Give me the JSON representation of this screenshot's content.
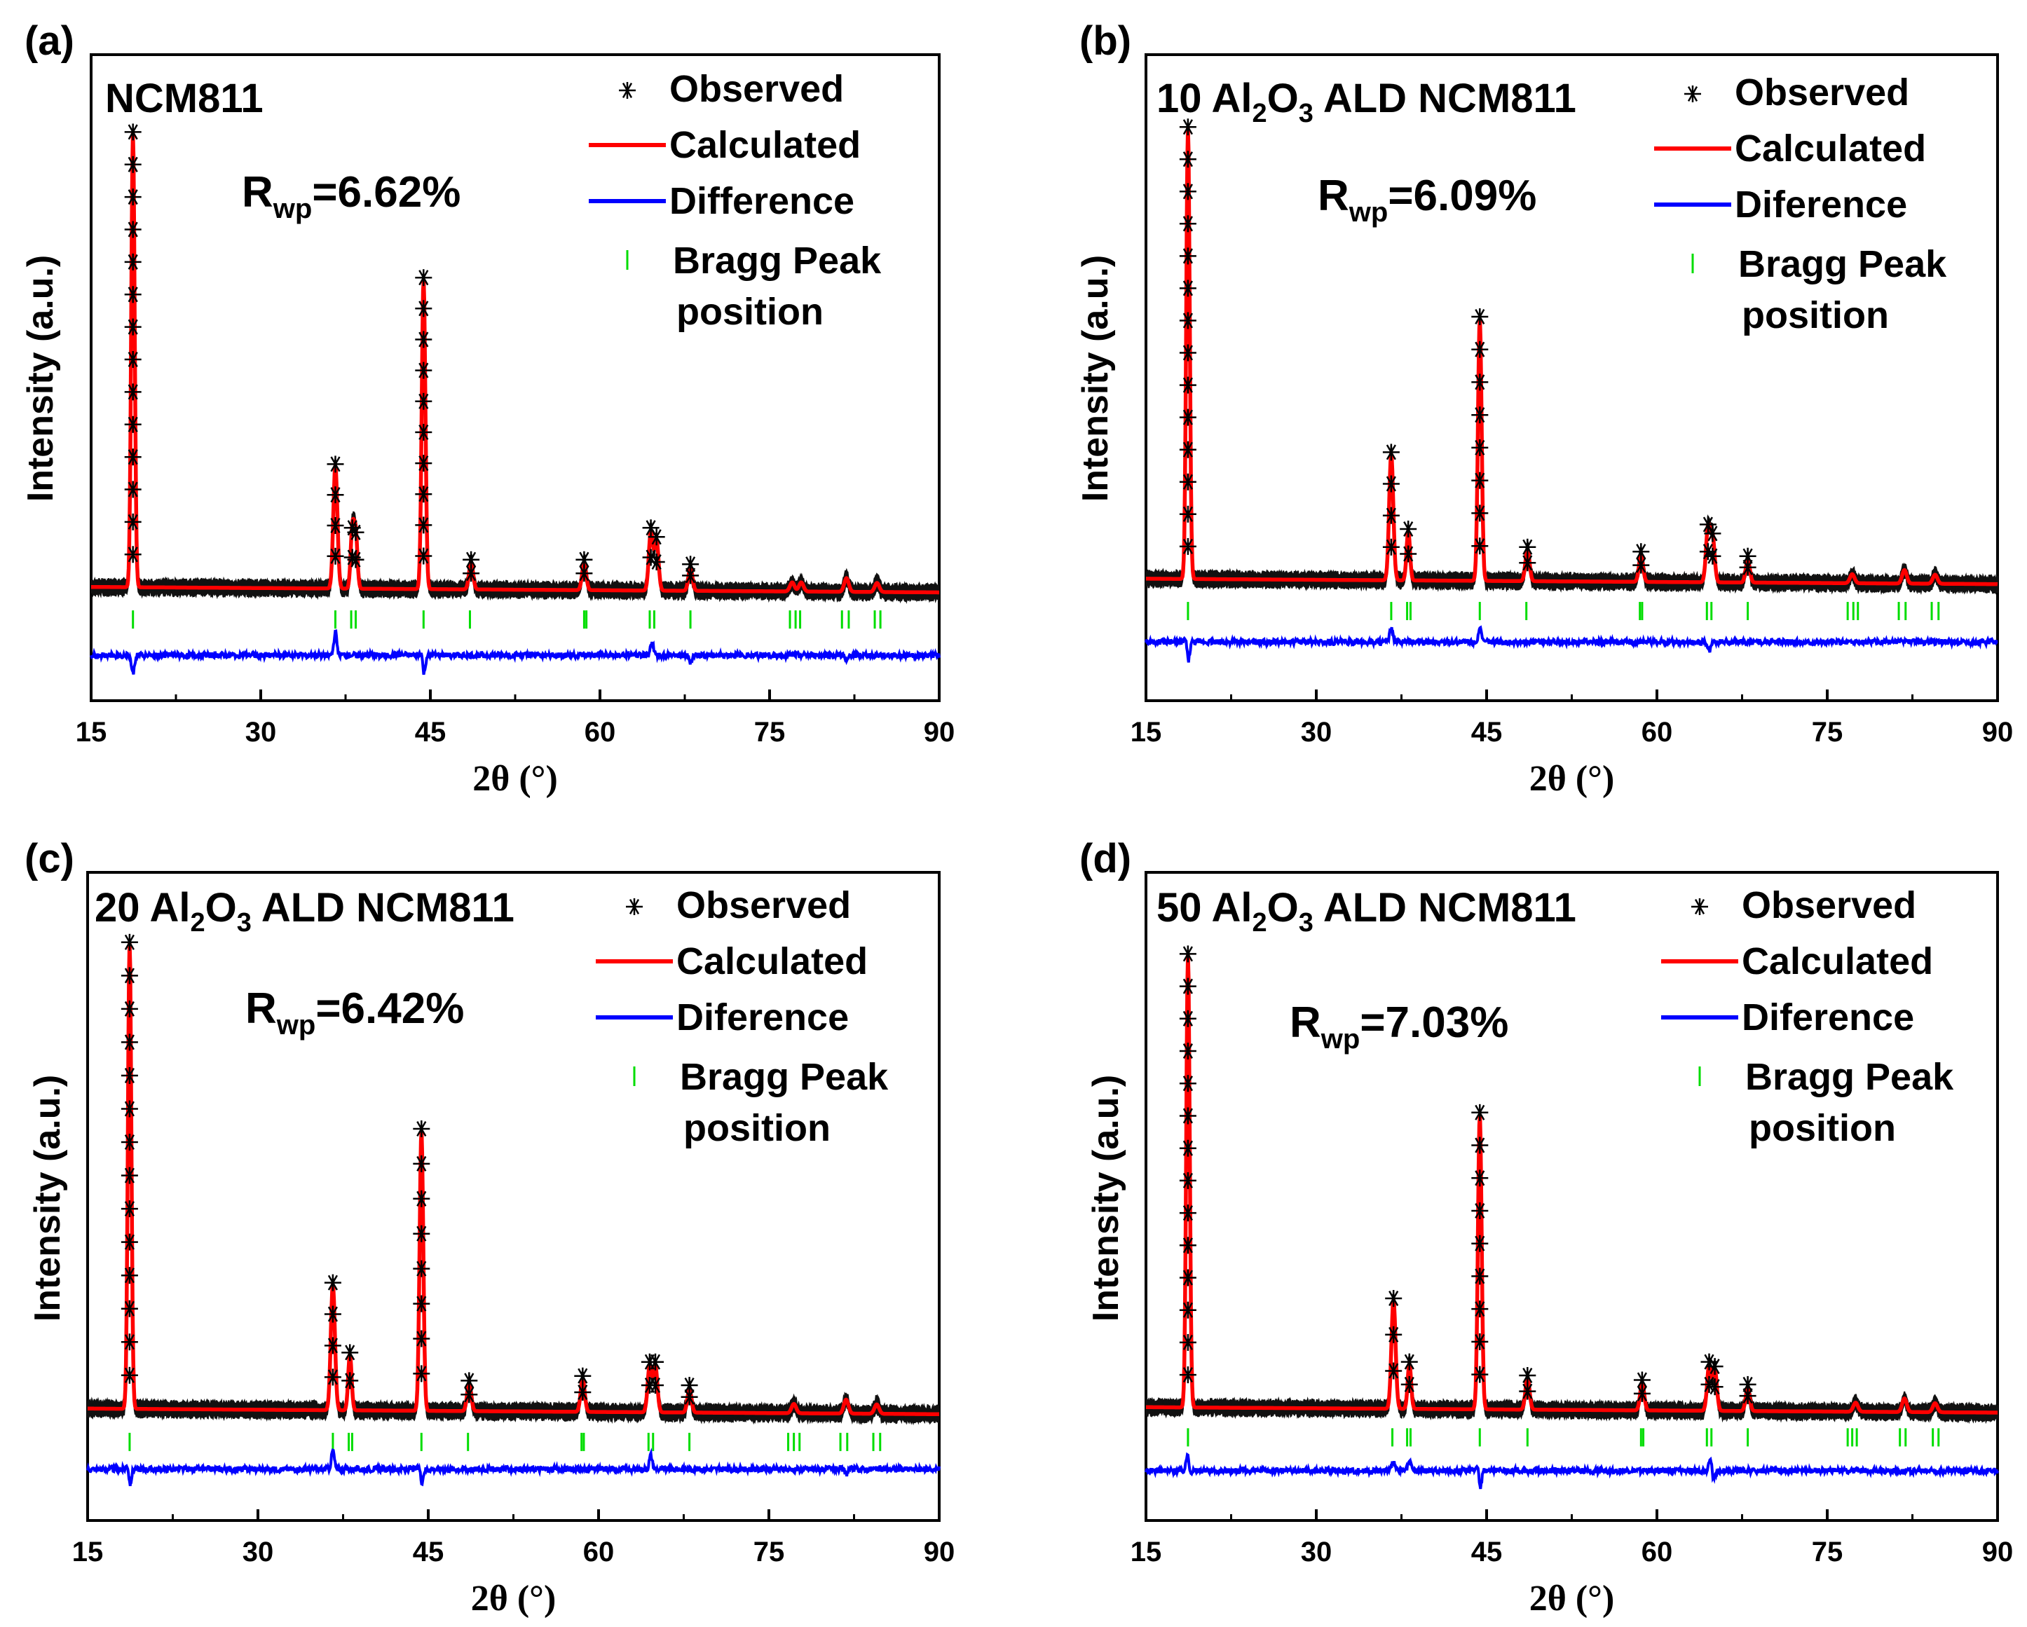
{
  "chart_data": [
    {
      "type": "line",
      "panel_label": "(a)",
      "sample": {
        "parts": [
          {
            "t": "NCM811"
          }
        ]
      },
      "rwp": {
        "main": "R",
        "sub": "wp",
        "value": "=6.62%"
      },
      "legend": [
        "Observed",
        "Calculated",
        "Difference",
        "Bragg Peak",
        "position"
      ],
      "ylabel": "Intensity (a.u.)",
      "xlabel": "2θ (°)",
      "xlim": [
        15,
        90
      ],
      "xticks": [
        "15",
        "30",
        "45",
        "60",
        "75",
        "90"
      ],
      "ylim": [
        -0.25,
        1.17
      ],
      "baseline": 0.0,
      "peaks": [
        [
          18.7,
          1.0,
          0.15
        ],
        [
          36.6,
          0.27,
          0.18
        ],
        [
          38.1,
          0.13,
          0.15
        ],
        [
          38.4,
          0.12,
          0.15
        ],
        [
          44.4,
          0.68,
          0.16
        ],
        [
          48.6,
          0.06,
          0.18
        ],
        [
          58.6,
          0.06,
          0.18
        ],
        [
          64.5,
          0.13,
          0.18
        ],
        [
          65.0,
          0.11,
          0.18
        ],
        [
          68.0,
          0.05,
          0.18
        ],
        [
          77.0,
          0.02,
          0.2
        ],
        [
          77.8,
          0.02,
          0.2
        ],
        [
          81.8,
          0.03,
          0.2
        ],
        [
          84.5,
          0.02,
          0.2
        ]
      ],
      "bragg": [
        18.7,
        36.6,
        38.0,
        38.4,
        44.4,
        48.5,
        58.6,
        58.8,
        64.4,
        64.8,
        68.0,
        76.8,
        77.3,
        77.7,
        81.4,
        82.0,
        84.3,
        84.8
      ],
      "difference": [
        [
          18.7,
          -0.04
        ],
        [
          36.6,
          0.05
        ],
        [
          44.4,
          -0.06
        ],
        [
          44.3,
          0.03
        ],
        [
          64.6,
          0.03
        ],
        [
          68.0,
          -0.015
        ],
        [
          81.8,
          -0.015
        ]
      ],
      "diff_level": -0.15,
      "tick_level": -0.07
    },
    {
      "type": "line",
      "panel_label": "(b)",
      "sample": {
        "parts": [
          {
            "t": "10 Al"
          },
          {
            "t": "2",
            "sub": true
          },
          {
            "t": "O"
          },
          {
            "t": "3",
            "sub": true
          },
          {
            "t": " ALD NCM811"
          }
        ]
      },
      "rwp": {
        "main": "R",
        "sub": "wp",
        "value": "=6.09%"
      },
      "legend": [
        "Observed",
        "Calculated",
        "Diference",
        "Bragg Peak",
        "position"
      ],
      "ylabel": "Intensity (a.u.)",
      "xlabel": "2θ (°)",
      "xlim": [
        15,
        90
      ],
      "xticks": [
        "15",
        "30",
        "45",
        "60",
        "75",
        "90"
      ],
      "ylim": [
        -0.27,
        1.16
      ],
      "baseline": 0.0,
      "peaks": [
        [
          18.7,
          1.0,
          0.15
        ],
        [
          36.6,
          0.28,
          0.18
        ],
        [
          38.1,
          0.11,
          0.15
        ],
        [
          44.4,
          0.58,
          0.16
        ],
        [
          48.6,
          0.07,
          0.18
        ],
        [
          58.6,
          0.06,
          0.18
        ],
        [
          64.5,
          0.12,
          0.18
        ],
        [
          64.9,
          0.1,
          0.18
        ],
        [
          68.0,
          0.05,
          0.18
        ],
        [
          77.2,
          0.02,
          0.2
        ],
        [
          81.8,
          0.03,
          0.2
        ],
        [
          84.5,
          0.02,
          0.2
        ]
      ],
      "bragg": [
        18.7,
        36.6,
        38.0,
        38.3,
        44.4,
        48.5,
        58.5,
        58.7,
        64.4,
        64.8,
        68.0,
        76.8,
        77.3,
        77.7,
        81.3,
        81.9,
        84.2,
        84.8
      ],
      "difference": [
        [
          18.7,
          -0.06
        ],
        [
          18.6,
          0.03
        ],
        [
          36.6,
          0.03
        ],
        [
          44.4,
          0.03
        ],
        [
          64.6,
          -0.02
        ]
      ],
      "diff_level": -0.14,
      "tick_level": -0.07
    },
    {
      "type": "line",
      "panel_label": "(c)",
      "sample": {
        "parts": [
          {
            "t": "20 Al"
          },
          {
            "t": "2",
            "sub": true
          },
          {
            "t": "O"
          },
          {
            "t": "3",
            "sub": true
          },
          {
            "t": " ALD NCM811"
          }
        ]
      },
      "rwp": {
        "main": "R",
        "sub": "wp",
        "value": "=6.42%"
      },
      "legend": [
        "Observed",
        "Calculated",
        "Diference",
        "Bragg Peak",
        "position"
      ],
      "ylabel": "Intensity (a.u.)",
      "xlabel": "2θ (°)",
      "xlim": [
        15,
        90
      ],
      "xticks": [
        "15",
        "30",
        "45",
        "60",
        "75",
        "90"
      ],
      "ylim": [
        -0.24,
        1.15
      ],
      "baseline": 0.0,
      "peaks": [
        [
          18.7,
          1.0,
          0.15
        ],
        [
          36.6,
          0.27,
          0.18
        ],
        [
          38.1,
          0.12,
          0.15
        ],
        [
          44.4,
          0.6,
          0.16
        ],
        [
          48.6,
          0.06,
          0.18
        ],
        [
          58.6,
          0.07,
          0.18
        ],
        [
          64.5,
          0.1,
          0.18
        ],
        [
          65.0,
          0.1,
          0.18
        ],
        [
          68.0,
          0.05,
          0.18
        ],
        [
          77.2,
          0.02,
          0.2
        ],
        [
          81.8,
          0.03,
          0.2
        ],
        [
          84.5,
          0.02,
          0.2
        ]
      ],
      "bragg": [
        18.7,
        36.6,
        38.0,
        38.3,
        44.4,
        48.5,
        58.5,
        58.7,
        64.4,
        64.8,
        68.0,
        76.7,
        77.2,
        77.7,
        81.3,
        81.9,
        84.2,
        84.8
      ],
      "difference": [
        [
          18.7,
          -0.05
        ],
        [
          18.6,
          0.03
        ],
        [
          36.6,
          0.04
        ],
        [
          44.4,
          -0.04
        ],
        [
          44.3,
          0.02
        ],
        [
          64.6,
          0.03
        ],
        [
          81.8,
          -0.01
        ]
      ],
      "diff_level": -0.13,
      "tick_level": -0.07
    },
    {
      "type": "line",
      "panel_label": "(d)",
      "sample": {
        "parts": [
          {
            "t": "50 Al"
          },
          {
            "t": "2",
            "sub": true
          },
          {
            "t": "O"
          },
          {
            "t": "3",
            "sub": true
          },
          {
            "t": " ALD NCM811"
          }
        ]
      },
      "rwp": {
        "main": "R",
        "sub": "wp",
        "value": "=7.03%"
      },
      "legend": [
        "Observed",
        "Calculated",
        "Diference",
        "Bragg Peak",
        "position"
      ],
      "ylabel": "Intensity (a.u.)",
      "xlabel": "2θ (°)",
      "xlim": [
        15,
        90
      ],
      "xticks": [
        "15",
        "30",
        "45",
        "60",
        "75",
        "90"
      ],
      "ylim": [
        -0.25,
        1.18
      ],
      "baseline": 0.0,
      "peaks": [
        [
          18.7,
          1.0,
          0.15
        ],
        [
          36.8,
          0.24,
          0.18
        ],
        [
          38.2,
          0.1,
          0.15
        ],
        [
          44.4,
          0.65,
          0.16
        ],
        [
          48.6,
          0.07,
          0.18
        ],
        [
          58.7,
          0.06,
          0.18
        ],
        [
          64.6,
          0.1,
          0.18
        ],
        [
          65.1,
          0.09,
          0.18
        ],
        [
          68.0,
          0.05,
          0.18
        ],
        [
          77.5,
          0.02,
          0.2
        ],
        [
          81.8,
          0.03,
          0.2
        ],
        [
          84.5,
          0.02,
          0.2
        ]
      ],
      "bragg": [
        18.7,
        36.7,
        38.0,
        38.3,
        44.4,
        48.6,
        58.6,
        58.8,
        64.4,
        64.8,
        68.0,
        76.8,
        77.2,
        77.6,
        81.4,
        81.9,
        84.3,
        84.8
      ],
      "difference": [
        [
          18.7,
          0.05
        ],
        [
          18.8,
          -0.02
        ],
        [
          36.8,
          0.02
        ],
        [
          38.2,
          0.02
        ],
        [
          44.4,
          -0.06
        ],
        [
          44.3,
          0.04
        ],
        [
          64.7,
          0.03
        ],
        [
          65.0,
          -0.02
        ]
      ],
      "diff_level": -0.14,
      "tick_level": -0.065
    }
  ]
}
